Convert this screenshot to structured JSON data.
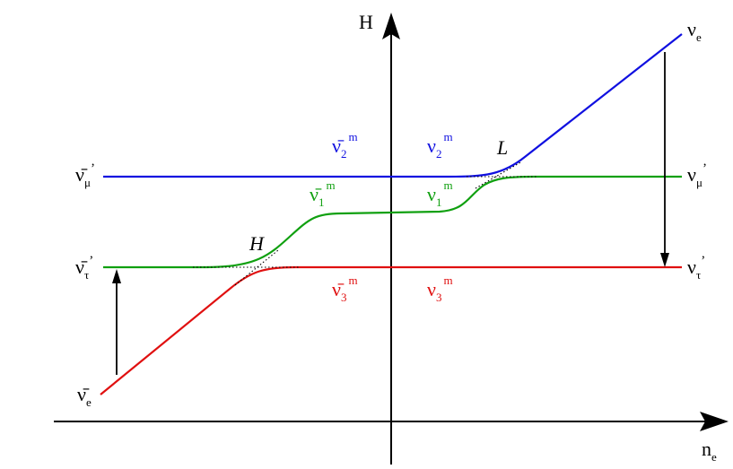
{
  "axes": {
    "y_label": "H",
    "x_label": {
      "base": "n",
      "sub": "e"
    }
  },
  "colors": {
    "blue": "#1010e0",
    "green": "#10a010",
    "red": "#e01010",
    "black": "#000000"
  },
  "resonances": {
    "high": "H",
    "low": "L"
  },
  "left_labels": {
    "mu_bar": {
      "base": "ν̄",
      "sub": "μ",
      "sup": "’"
    },
    "tau_bar": {
      "base": "ν̄",
      "sub": "τ",
      "sup": "’"
    },
    "e_bar": {
      "base": "ν̄",
      "sub": "e"
    }
  },
  "right_labels": {
    "e": {
      "base": "ν",
      "sub": "e"
    },
    "mu": {
      "base": "ν",
      "sub": "μ",
      "sup": "’"
    },
    "tau": {
      "base": "ν",
      "sub": "τ",
      "sup": "’"
    }
  },
  "matter_states": {
    "antinu2": {
      "base": "ν̄",
      "sub": "2",
      "sup": "m"
    },
    "nu2": {
      "base": "ν",
      "sub": "2",
      "sup": "m"
    },
    "antinu1": {
      "base": "ν̄",
      "sub": "1",
      "sup": "m"
    },
    "nu1": {
      "base": "ν",
      "sub": "1",
      "sup": "m"
    },
    "antinu3": {
      "base": "ν̄",
      "sub": "3",
      "sup": "m"
    },
    "nu3": {
      "base": "ν",
      "sub": "3",
      "sup": "m"
    }
  }
}
